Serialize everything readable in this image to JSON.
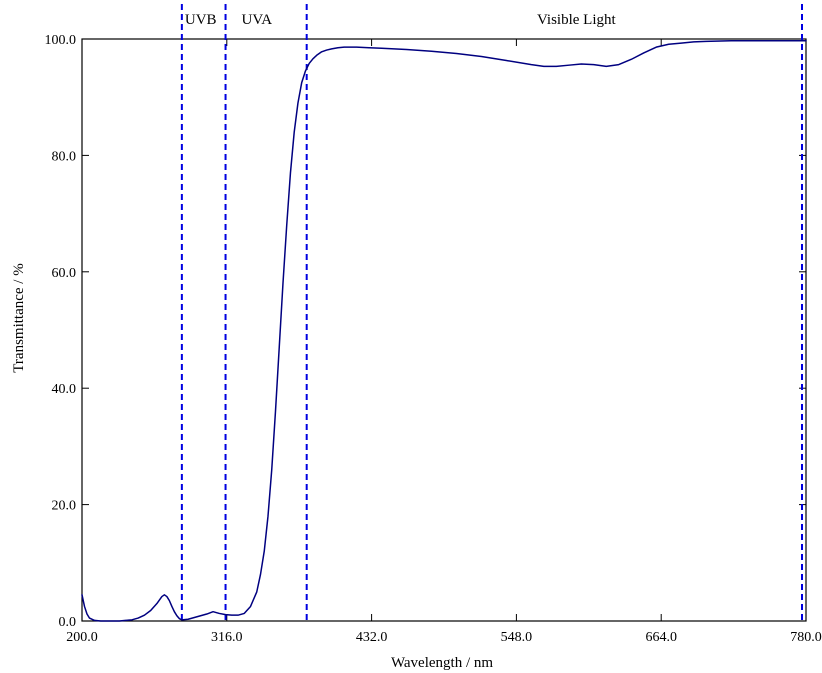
{
  "chart_data": {
    "type": "line",
    "title": "",
    "xlabel": "Wavelength / nm",
    "ylabel": "Transmittance / %",
    "xlim": [
      200,
      780
    ],
    "ylim": [
      0,
      100
    ],
    "x_ticks": [
      200,
      316,
      432,
      548,
      664,
      780
    ],
    "x_tick_labels": [
      "200.0",
      "316.0",
      "432.0",
      "548.0",
      "664.0",
      "780.0"
    ],
    "y_ticks": [
      0,
      20,
      40,
      60,
      80,
      100
    ],
    "y_tick_labels": [
      "0.0",
      "20.0",
      "40.0",
      "60.0",
      "80.0",
      "100.0"
    ],
    "grid": false,
    "legend": "none",
    "line_color": "#000080",
    "divider_color": "#0000e0",
    "regions": [
      {
        "label": "UVB",
        "x_start": 280,
        "x_end": 315
      },
      {
        "label": "UVA",
        "x_start": 315,
        "x_end": 380
      },
      {
        "label": "Visible Light",
        "x_start": 380,
        "x_end": 780
      }
    ],
    "dividers": [
      280,
      315,
      380,
      780
    ],
    "series": [
      {
        "x": [
          200,
          202,
          204,
          206,
          210,
          215,
          220,
          225,
          230,
          235,
          240,
          245,
          250,
          255,
          260,
          262,
          264,
          266,
          268,
          270,
          272,
          274,
          276,
          278,
          280,
          285,
          290,
          295,
          300,
          305,
          310,
          315,
          320,
          325,
          330,
          335,
          340,
          343,
          346,
          349,
          352,
          355,
          358,
          361,
          364,
          367,
          370,
          373,
          376,
          379,
          382,
          385,
          388,
          392,
          396,
          400,
          405,
          410,
          415,
          420,
          430,
          440,
          450,
          460,
          480,
          500,
          520,
          540,
          560,
          570,
          580,
          590,
          600,
          610,
          620,
          630,
          640,
          650,
          660,
          670,
          680,
          690,
          700,
          720,
          740,
          760,
          770,
          775,
          780
        ],
        "y": [
          4.5,
          2.5,
          1.2,
          0.5,
          0.1,
          0,
          0,
          0,
          0,
          0.1,
          0.2,
          0.5,
          1.0,
          1.8,
          3.0,
          3.6,
          4.2,
          4.5,
          4.2,
          3.5,
          2.5,
          1.6,
          0.9,
          0.4,
          0.2,
          0.3,
          0.6,
          0.9,
          1.2,
          1.6,
          1.3,
          1.1,
          1.0,
          1.0,
          1.3,
          2.5,
          5,
          8,
          12,
          18,
          26,
          36,
          47,
          58,
          68,
          77,
          84,
          89,
          92.5,
          94.5,
          95.8,
          96.6,
          97.2,
          97.8,
          98.1,
          98.3,
          98.5,
          98.6,
          98.6,
          98.6,
          98.5,
          98.4,
          98.3,
          98.2,
          97.9,
          97.5,
          97.0,
          96.3,
          95.6,
          95.3,
          95.3,
          95.5,
          95.7,
          95.6,
          95.3,
          95.6,
          96.5,
          97.6,
          98.6,
          99.1,
          99.3,
          99.5,
          99.6,
          99.7,
          99.7,
          99.7,
          99.7,
          99.7,
          99.7
        ]
      }
    ]
  }
}
